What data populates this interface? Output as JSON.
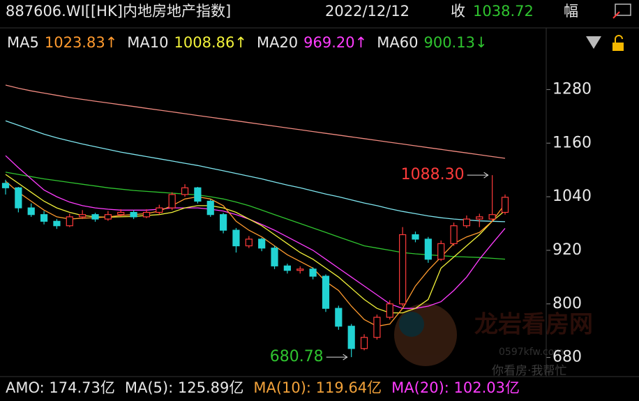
{
  "chart_data": {
    "type": "candlestick",
    "header": {
      "symbol": "887606.WI[[HK]内地房地产指数]",
      "date": "2022/12/12",
      "close_label": "收",
      "close": "1038.72",
      "change_label": "幅"
    },
    "ylim": [
      645,
      1340
    ],
    "yticks": [
      680,
      800,
      920,
      1040,
      1160,
      1280
    ],
    "up_color": "#ff3b3b",
    "down_color": "#22d3d3",
    "ohlc": [
      [
        1070,
        1078,
        1045,
        1060
      ],
      [
        1060,
        1062,
        1005,
        1015
      ],
      [
        1015,
        1025,
        995,
        1000
      ],
      [
        1000,
        1008,
        978,
        985
      ],
      [
        985,
        990,
        968,
        975
      ],
      [
        975,
        1002,
        972,
        995
      ],
      [
        995,
        1010,
        990,
        1000
      ],
      [
        1000,
        1004,
        984,
        990
      ],
      [
        990,
        1008,
        986,
        1000
      ],
      [
        1000,
        1012,
        996,
        1005
      ],
      [
        1005,
        1010,
        990,
        995
      ],
      [
        995,
        1012,
        992,
        1005
      ],
      [
        1005,
        1022,
        1000,
        1015
      ],
      [
        1015,
        1050,
        1010,
        1045
      ],
      [
        1045,
        1068,
        1040,
        1060
      ],
      [
        1060,
        1062,
        1025,
        1030
      ],
      [
        1030,
        1034,
        995,
        1000
      ],
      [
        1000,
        1004,
        958,
        965
      ],
      [
        965,
        970,
        915,
        930
      ],
      [
        930,
        952,
        925,
        945
      ],
      [
        945,
        948,
        918,
        925
      ],
      [
        925,
        930,
        878,
        885
      ],
      [
        885,
        890,
        868,
        875
      ],
      [
        875,
        884,
        868,
        878
      ],
      [
        878,
        882,
        855,
        862
      ],
      [
        862,
        866,
        782,
        790
      ],
      [
        790,
        796,
        742,
        750
      ],
      [
        750,
        755,
        680.78,
        700
      ],
      [
        700,
        732,
        696,
        725
      ],
      [
        725,
        776,
        720,
        770
      ],
      [
        770,
        808,
        765,
        800
      ],
      [
        800,
        972,
        795,
        955
      ],
      [
        955,
        962,
        938,
        945
      ],
      [
        945,
        950,
        892,
        900
      ],
      [
        900,
        942,
        896,
        935
      ],
      [
        935,
        982,
        930,
        975
      ],
      [
        975,
        998,
        970,
        990
      ],
      [
        990,
        1002,
        972,
        995
      ],
      [
        990,
        1088.3,
        985,
        1000
      ],
      [
        1005,
        1045,
        1000,
        1038.72
      ]
    ],
    "series": [
      {
        "name": "MA5",
        "color": "#ff9a2e",
        "value_label": "1023.83↑",
        "values": [
          1075,
          1050,
          1030,
          1010,
          995,
          990,
          992,
          993,
          995,
          998,
          1000,
          1002,
          1008,
          1020,
          1035,
          1040,
          1035,
          1020,
          985,
          965,
          950,
          930,
          910,
          895,
          880,
          850,
          830,
          795,
          765,
          750,
          755,
          790,
          840,
          875,
          905,
          935,
          950,
          960,
          985,
          1023.83
        ]
      },
      {
        "name": "MA10",
        "color": "#f2f23a",
        "value_label": "1008.86↑",
        "values": [
          1090,
          1070,
          1050,
          1030,
          1015,
          1005,
          998,
          995,
          994,
          995,
          996,
          998,
          1000,
          1005,
          1015,
          1020,
          1020,
          1015,
          1005,
          990,
          975,
          955,
          935,
          915,
          900,
          880,
          860,
          835,
          810,
          790,
          780,
          780,
          790,
          810,
          880,
          905,
          930,
          955,
          985,
          1008.86
        ]
      },
      {
        "name": "MA20",
        "color": "#ff3cff",
        "value_label": "969.20↑",
        "values": [
          1132,
          1105,
          1080,
          1055,
          1040,
          1028,
          1020,
          1015,
          1012,
          1010,
          1010,
          1010,
          1012,
          1015,
          1015,
          1015,
          1012,
          1008,
          1000,
          990,
          978,
          965,
          950,
          935,
          920,
          900,
          880,
          860,
          840,
          820,
          800,
          790,
          790,
          795,
          805,
          830,
          860,
          900,
          935,
          969.2
        ]
      },
      {
        "name": "MA60",
        "color": "#2fc42f",
        "value_label": "900.13↓",
        "values": [
          1095,
          1090,
          1085,
          1080,
          1076,
          1072,
          1068,
          1064,
          1060,
          1057,
          1054,
          1052,
          1050,
          1048,
          1046,
          1044,
          1040,
          1035,
          1028,
          1020,
          1010,
          1000,
          990,
          980,
          970,
          960,
          950,
          940,
          930,
          925,
          920,
          915,
          912,
          910,
          908,
          906,
          905,
          904,
          902,
          900.13
        ]
      },
      {
        "color": "#7fe6f0",
        "values": [
          1210,
          1200,
          1190,
          1180,
          1172,
          1165,
          1158,
          1152,
          1146,
          1140,
          1135,
          1130,
          1125,
          1120,
          1115,
          1110,
          1104,
          1098,
          1092,
          1086,
          1080,
          1073,
          1066,
          1060,
          1053,
          1046,
          1040,
          1033,
          1026,
          1020,
          1013,
          1007,
          1002,
          997,
          993,
          990,
          988,
          986,
          985,
          984
        ]
      },
      {
        "color": "#f08a80",
        "values": [
          1290,
          1283,
          1277,
          1272,
          1267,
          1262,
          1258,
          1254,
          1250,
          1246,
          1242,
          1238,
          1234,
          1230,
          1226,
          1222,
          1218,
          1214,
          1210,
          1206,
          1202,
          1198,
          1194,
          1190,
          1186,
          1182,
          1178,
          1174,
          1170,
          1166,
          1162,
          1158,
          1154,
          1150,
          1146,
          1142,
          1138,
          1134,
          1130,
          1126
        ]
      }
    ],
    "annotations": [
      {
        "text": "1088.30",
        "index": 38,
        "value": 1088.3,
        "color": "#ff3b3b"
      },
      {
        "text": "680.78",
        "index": 27,
        "value": 680.78,
        "color": "#2fc42f"
      }
    ],
    "footer": [
      {
        "text": "AMO: 174.73亿",
        "color": "#e8e8e8"
      },
      {
        "text": "MA(5): 125.89亿",
        "color": "#e8e8e8"
      },
      {
        "text": "MA(10): 119.64亿",
        "color": "#f2a23a"
      },
      {
        "text": "MA(20): 102.03亿",
        "color": "#ff3cff"
      }
    ],
    "watermark": {
      "name": "龙岩看房网",
      "url": "0597kfw.com",
      "slogan": "你看房·我帮忙"
    }
  }
}
